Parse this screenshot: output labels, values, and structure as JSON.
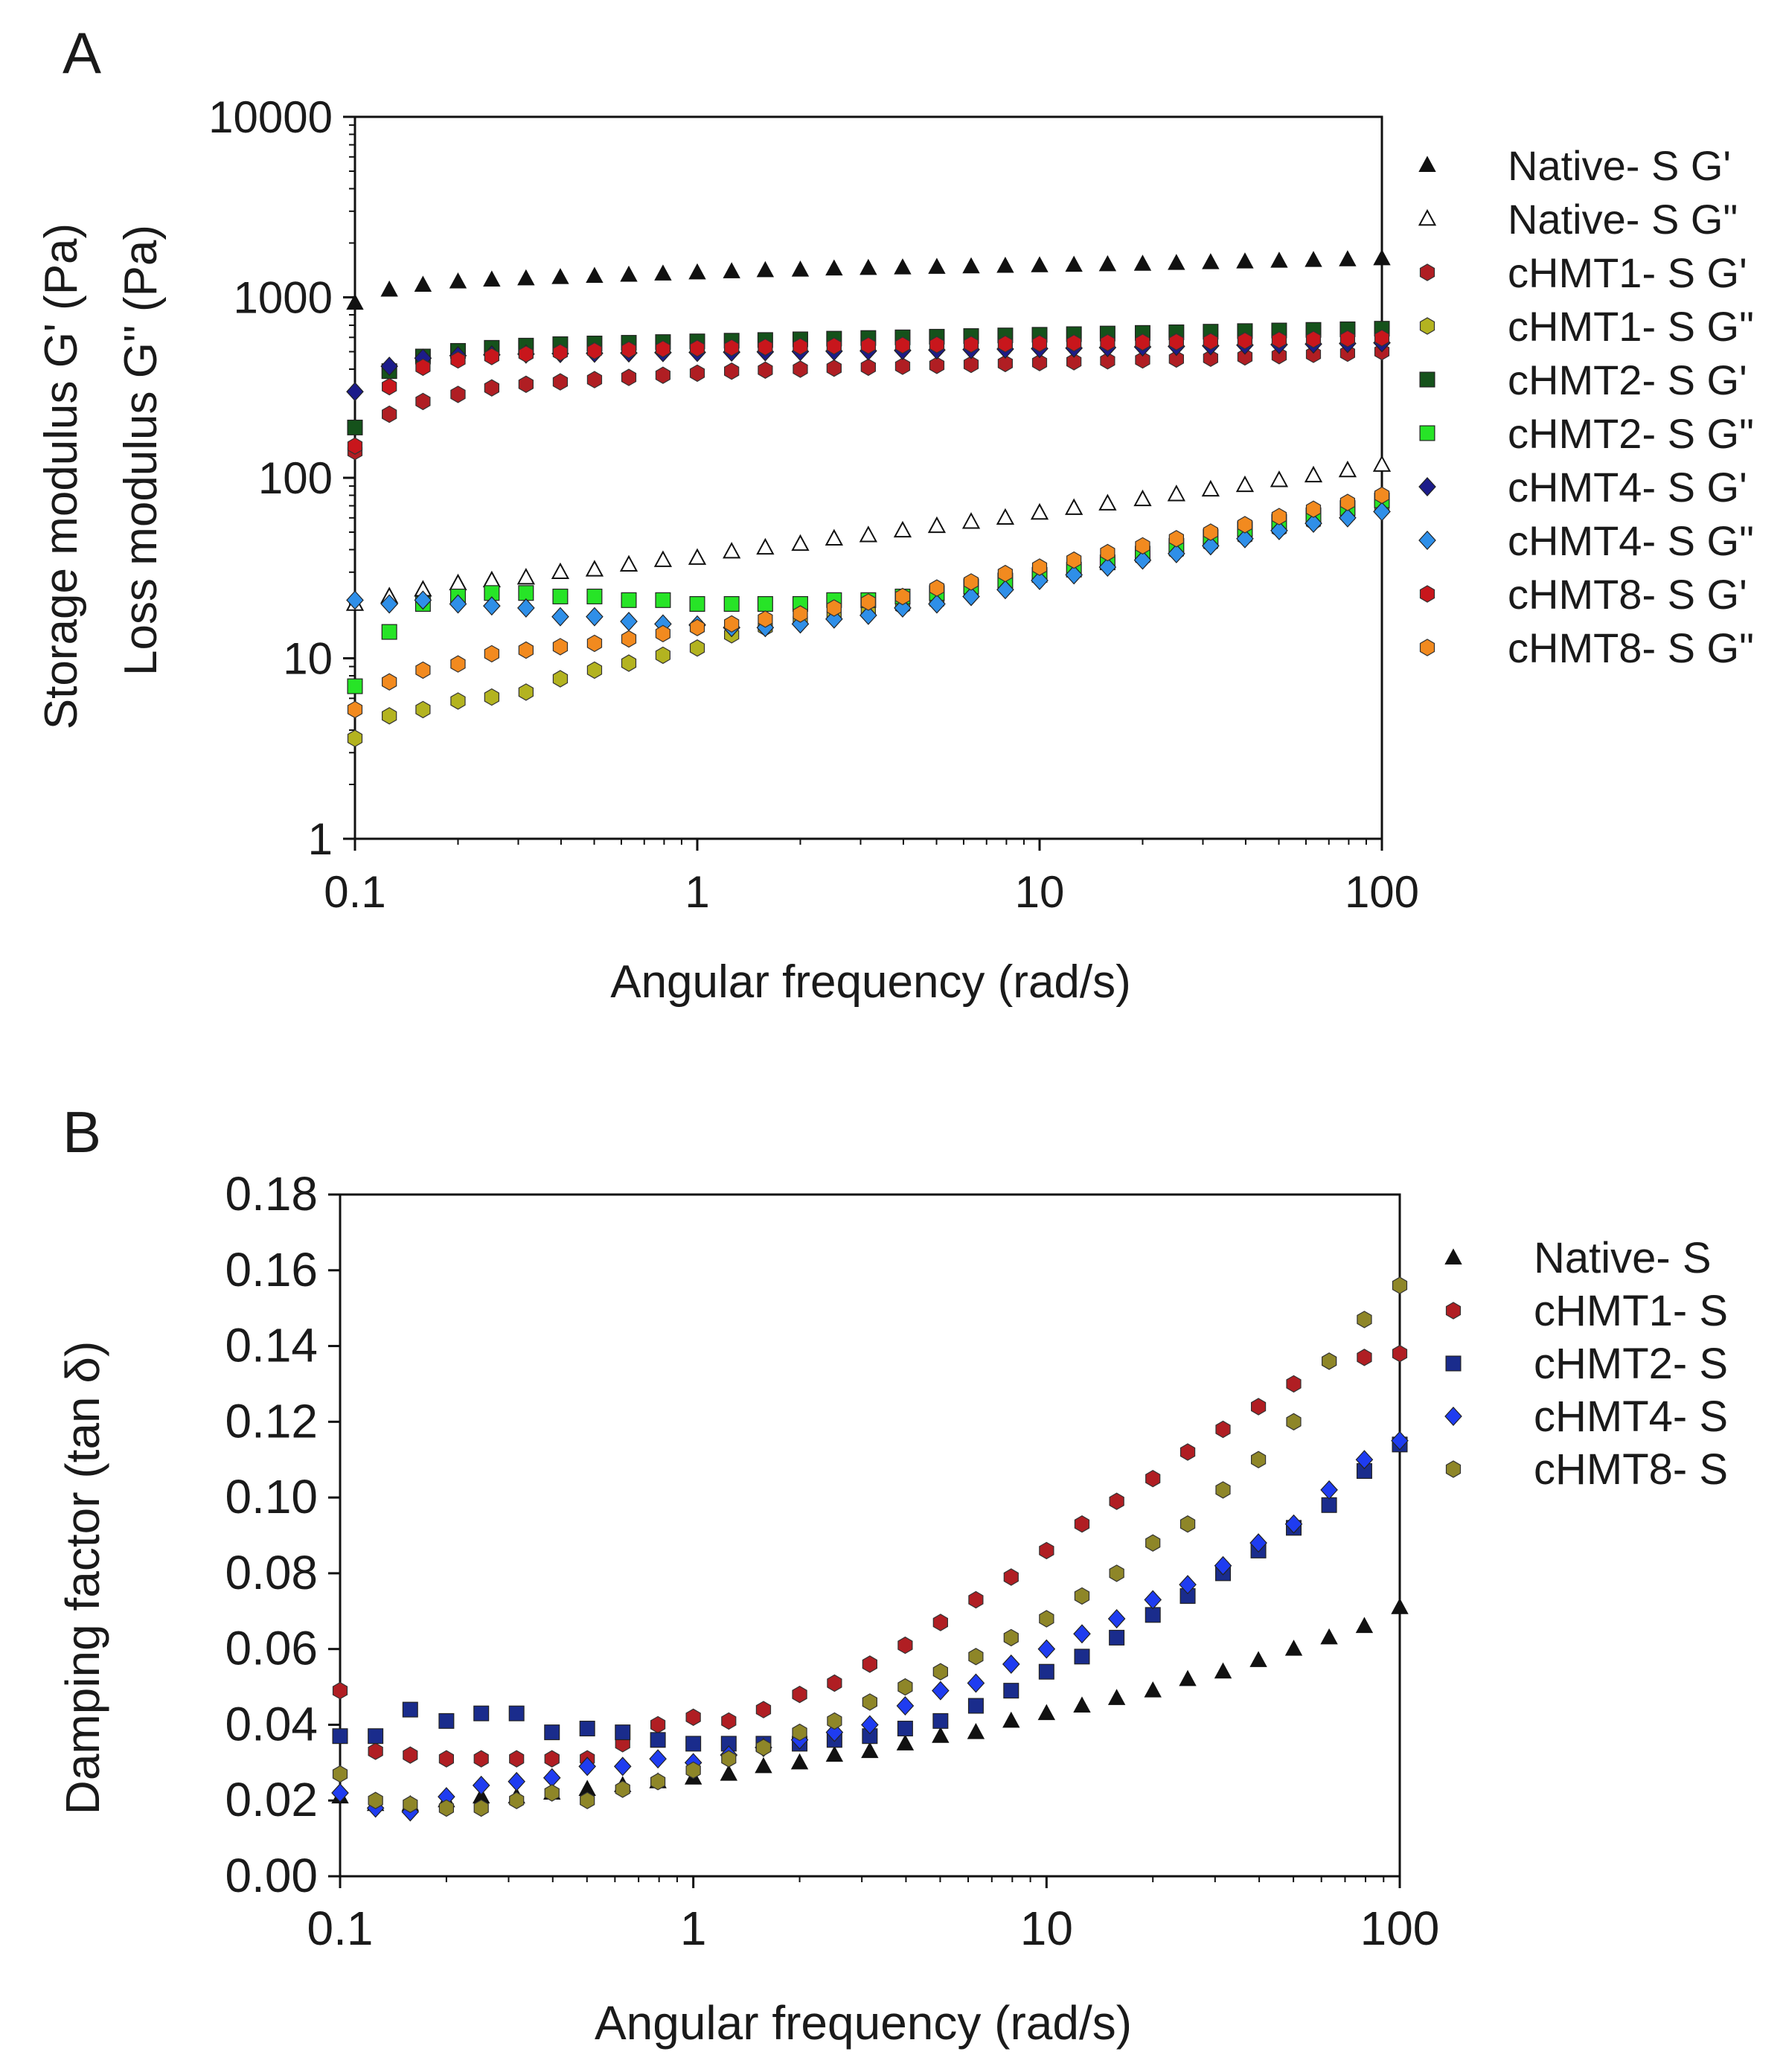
{
  "chart_data": [
    {
      "panel": "A",
      "type": "scatter",
      "title": "",
      "xlabel": "Angular frequency (rad/s)",
      "ylabel_lines": [
        "Storage modulus G' (Pa)",
        "Loss modulus G'' (Pa)"
      ],
      "xscale": "log",
      "yscale": "log",
      "xlim": [
        0.1,
        100
      ],
      "ylim": [
        1,
        10000
      ],
      "x_ticks": [
        "0.1",
        "1",
        "10",
        "100"
      ],
      "y_ticks": [
        "1",
        "10",
        "100",
        "1000",
        "10000"
      ],
      "legend_position": "right",
      "x": [
        0.1,
        0.126,
        0.158,
        0.2,
        0.251,
        0.316,
        0.398,
        0.501,
        0.631,
        0.794,
        1,
        1.26,
        1.58,
        2,
        2.51,
        3.16,
        3.98,
        5.01,
        6.31,
        7.94,
        10,
        12.6,
        15.8,
        20,
        25.1,
        31.6,
        39.8,
        50.1,
        63.1,
        79.4,
        100
      ],
      "series": [
        {
          "name": "Native- S G'",
          "marker": "triangle-filled",
          "color": "#111111",
          "values": [
            930,
            1100,
            1170,
            1220,
            1250,
            1270,
            1290,
            1310,
            1330,
            1350,
            1370,
            1390,
            1410,
            1420,
            1440,
            1450,
            1460,
            1470,
            1480,
            1490,
            1500,
            1510,
            1520,
            1530,
            1545,
            1560,
            1575,
            1590,
            1605,
            1620,
            1640
          ]
        },
        {
          "name": "Native- S G\"",
          "marker": "triangle-open",
          "color": "#111111",
          "values": [
            20,
            22,
            24,
            26,
            27,
            28,
            30,
            31,
            33,
            35,
            36,
            39,
            41,
            43,
            46,
            48,
            51,
            54,
            57,
            60,
            64,
            68,
            72,
            76,
            81,
            86,
            91,
            97,
            103,
            110,
            118
          ]
        },
        {
          "name": "cHMT1- S G'",
          "marker": "hexagon",
          "color": "#b01e23",
          "values": [
            140,
            225,
            265,
            290,
            315,
            330,
            340,
            350,
            360,
            370,
            380,
            390,
            395,
            400,
            405,
            410,
            415,
            420,
            425,
            430,
            435,
            440,
            445,
            450,
            455,
            460,
            468,
            475,
            483,
            490,
            500
          ]
        },
        {
          "name": "cHMT1- S G\"",
          "marker": "hexagon",
          "color": "#b3b320",
          "values": [
            3.6,
            4.8,
            5.2,
            5.8,
            6.1,
            6.5,
            7.7,
            8.6,
            9.4,
            10.4,
            11.4,
            13.5,
            14.8,
            16.2,
            17.2,
            18.3,
            19.4,
            20.6,
            23,
            25,
            28,
            30,
            33,
            36,
            39,
            43,
            47,
            52,
            57,
            62,
            68
          ]
        },
        {
          "name": "cHMT2- S G'",
          "marker": "square",
          "color": "#15521b",
          "values": [
            190,
            390,
            470,
            505,
            525,
            540,
            550,
            555,
            560,
            565,
            570,
            575,
            580,
            585,
            590,
            595,
            600,
            605,
            610,
            615,
            620,
            625,
            630,
            635,
            640,
            645,
            650,
            655,
            660,
            665,
            670
          ]
        },
        {
          "name": "cHMT2- S G\"",
          "marker": "square",
          "color": "#27e427",
          "values": [
            7,
            14,
            20,
            22,
            23,
            23,
            22,
            22,
            21,
            21,
            20,
            20,
            20,
            20,
            21,
            21,
            22,
            23,
            25,
            27,
            29,
            31,
            34,
            38,
            42,
            47,
            52,
            57,
            62,
            68,
            75
          ]
        },
        {
          "name": "cHMT4- S G'",
          "marker": "diamond",
          "color": "#1c1c8a",
          "values": [
            300,
            415,
            460,
            475,
            480,
            485,
            488,
            490,
            492,
            494,
            495,
            497,
            499,
            501,
            503,
            505,
            508,
            511,
            514,
            517,
            520,
            523,
            527,
            531,
            535,
            539,
            543,
            547,
            551,
            555,
            560
          ]
        },
        {
          "name": "cHMT4- S G\"",
          "marker": "diamond",
          "color": "#2f8fe8",
          "values": [
            21,
            20,
            21,
            20,
            19.5,
            19,
            17,
            17,
            16,
            15.5,
            15.3,
            14.8,
            14.8,
            15.5,
            16.5,
            17.3,
            19,
            20,
            22,
            24,
            27,
            29,
            32,
            35,
            38,
            42,
            46,
            51,
            56,
            60,
            65
          ]
        },
        {
          "name": "cHMT8- S G'",
          "marker": "hexagon",
          "color": "#c8161c",
          "values": [
            150,
            320,
            410,
            450,
            470,
            485,
            495,
            505,
            512,
            518,
            522,
            526,
            530,
            534,
            537,
            540,
            543,
            546,
            549,
            552,
            555,
            558,
            561,
            564,
            567,
            570,
            575,
            580,
            585,
            590,
            595
          ]
        },
        {
          "name": "cHMT8- S G\"",
          "marker": "hexagon",
          "color": "#f28a1f",
          "values": [
            5.2,
            7.4,
            8.6,
            9.3,
            10.6,
            11.1,
            11.6,
            12.1,
            12.8,
            13.7,
            14.8,
            15.5,
            16.5,
            17.6,
            19,
            20.5,
            22,
            24.5,
            26.5,
            29.5,
            32,
            35,
            38.5,
            42,
            46,
            50,
            55,
            61,
            67,
            73,
            80
          ]
        }
      ]
    },
    {
      "panel": "B",
      "type": "scatter",
      "title": "",
      "xlabel": "Angular frequency (rad/s)",
      "ylabel": "Damping factor (tan δ)",
      "xscale": "log",
      "yscale": "linear",
      "xlim": [
        0.1,
        100
      ],
      "ylim": [
        0,
        0.18
      ],
      "x_ticks": [
        "0.1",
        "1",
        "10",
        "100"
      ],
      "y_ticks": [
        "0.00",
        "0.02",
        "0.04",
        "0.06",
        "0.08",
        "0.10",
        "0.12",
        "0.14",
        "0.16",
        "0.18"
      ],
      "legend_position": "right",
      "x": [
        0.1,
        0.126,
        0.158,
        0.2,
        0.251,
        0.316,
        0.398,
        0.501,
        0.631,
        0.794,
        1,
        1.26,
        1.58,
        2,
        2.51,
        3.16,
        3.98,
        5.01,
        6.31,
        7.94,
        10,
        12.6,
        15.8,
        20,
        25.1,
        31.6,
        39.8,
        50.1,
        63.1,
        79.4,
        100
      ],
      "series": [
        {
          "name": "Native- S",
          "marker": "triangle-filled",
          "color": "#111111",
          "values": [
            0.021,
            0.019,
            0.019,
            0.02,
            0.021,
            0.021,
            0.022,
            0.023,
            0.024,
            0.025,
            0.026,
            0.027,
            0.029,
            0.03,
            0.032,
            0.033,
            0.035,
            0.037,
            0.038,
            0.041,
            0.043,
            0.045,
            0.047,
            0.049,
            0.052,
            0.054,
            0.057,
            0.06,
            0.063,
            0.066,
            0.071
          ]
        },
        {
          "name": "cHMT1- S",
          "marker": "hexagon",
          "color": "#b01e23",
          "values": [
            0.049,
            0.033,
            0.032,
            0.031,
            0.031,
            0.031,
            0.031,
            0.031,
            0.035,
            0.04,
            0.042,
            0.041,
            0.044,
            0.048,
            0.051,
            0.056,
            0.061,
            0.067,
            0.073,
            0.079,
            0.086,
            0.093,
            0.099,
            0.105,
            0.112,
            0.118,
            0.124,
            0.13,
            0.136,
            0.137,
            0.138
          ]
        },
        {
          "name": "cHMT2- S",
          "marker": "square",
          "color": "#1a2c8c",
          "values": [
            0.037,
            0.037,
            0.044,
            0.041,
            0.043,
            0.043,
            0.038,
            0.039,
            0.038,
            0.036,
            0.035,
            0.035,
            0.035,
            0.035,
            0.036,
            0.037,
            0.039,
            0.041,
            0.045,
            0.049,
            0.054,
            0.058,
            0.063,
            0.069,
            0.074,
            0.08,
            0.086,
            0.092,
            0.098,
            0.107,
            0.114
          ]
        },
        {
          "name": "cHMT4- S",
          "marker": "diamond",
          "color": "#1f3cf0",
          "values": [
            0.022,
            0.018,
            0.017,
            0.021,
            0.024,
            0.025,
            0.026,
            0.029,
            0.029,
            0.031,
            0.03,
            0.032,
            0.034,
            0.036,
            0.038,
            0.04,
            0.045,
            0.049,
            0.051,
            0.056,
            0.06,
            0.064,
            0.068,
            0.073,
            0.077,
            0.082,
            0.088,
            0.093,
            0.102,
            0.11,
            0.115
          ]
        },
        {
          "name": "cHMT8- S",
          "marker": "hexagon",
          "color": "#8e8628",
          "values": [
            0.027,
            0.02,
            0.019,
            0.018,
            0.018,
            0.02,
            0.022,
            0.02,
            0.023,
            0.025,
            0.028,
            0.031,
            0.034,
            0.038,
            0.041,
            0.046,
            0.05,
            0.054,
            0.058,
            0.063,
            0.068,
            0.074,
            0.08,
            0.088,
            0.093,
            0.102,
            0.11,
            0.12,
            0.136,
            0.147,
            0.156
          ]
        }
      ]
    }
  ]
}
